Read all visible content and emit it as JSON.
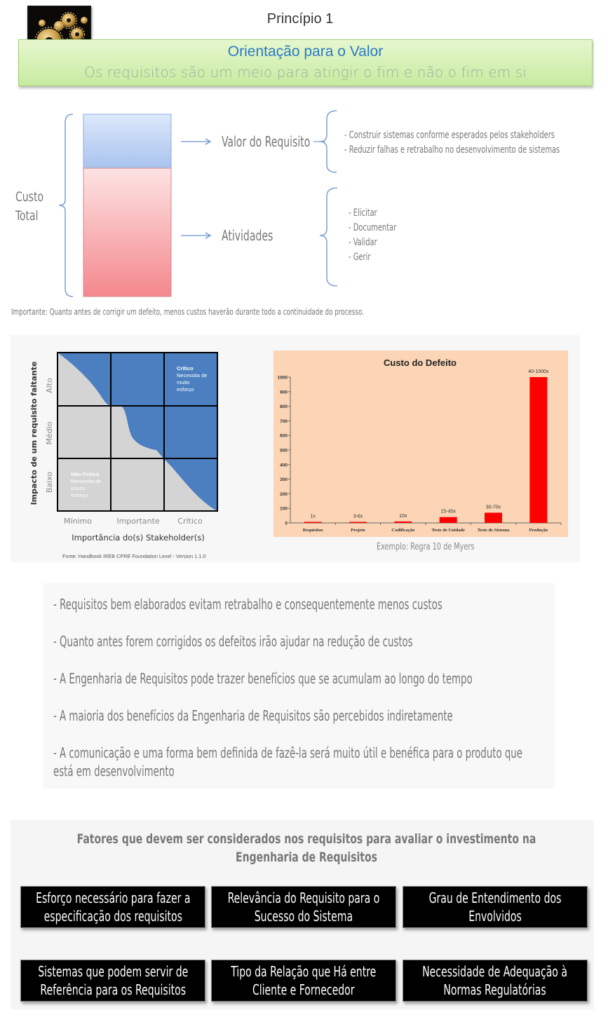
{
  "header": {
    "title": "Princípio 1",
    "banner_title": "Orientação para o Valor",
    "banner_subtitle": "Os requisitos são um meio para atingir o fim e não o fim em si"
  },
  "cost_diagram": {
    "total_label_lines": [
      "Custo",
      "Total"
    ],
    "value_label": "Valor do Requisito",
    "value_bullets": [
      "- Construir sistemas conforme esperados pelos stakeholders",
      "- Reduzir falhas e retrabalho no desenvolvimento de sistemas"
    ],
    "activities_label": "Atividades",
    "activity_bullets": [
      "- Elicitar",
      "- Documentar",
      "- Validar",
      "- Gerir"
    ],
    "note": "Importante: Quanto antes de corrigir um defeito, menos custos haverão durante todo a continuidade do processo."
  },
  "quadrant": {
    "y_title": "Impacto de um requisito faltante",
    "y_levels": [
      "Baixo",
      "Médio",
      "Alto"
    ],
    "x_title": "Importância do(s) Stakeholder(s)",
    "x_levels": [
      "Mínimo",
      "Importante",
      "Crítico"
    ],
    "critical_lines": [
      "Crítico",
      "Necessita de",
      "muito",
      "esforço"
    ],
    "noncritical_lines": [
      "Não-Crítico",
      "Necessita de",
      "pouco",
      "esforço"
    ],
    "source": "Fonte: Handbook IREB CPRE Foundation Level - Version 1.1.0"
  },
  "chart_data": {
    "type": "bar",
    "title": "Custo do Defeito",
    "categories": [
      "Requisitos",
      "Projeto",
      "Codificação",
      "Teste de Unidade",
      "Teste de Sistema",
      "Produção"
    ],
    "values": [
      1,
      6,
      10,
      40,
      70,
      1000
    ],
    "data_labels": [
      "1x",
      "3-6x",
      "10x",
      "15-40x",
      "30-70x",
      "40-1000x"
    ],
    "yticks": [
      0,
      100,
      200,
      300,
      400,
      500,
      600,
      700,
      800,
      900,
      1000
    ],
    "ylim": [
      0,
      1000
    ],
    "bar_color": "#ff0000",
    "background": "#fbd5b5",
    "caption": "Exemplo: Regra 10 de Myers"
  },
  "notes": [
    [
      "- Requisitos bem elaborados evitam retrabalho e consequentemente menos custos"
    ],
    [
      "- Quanto antes forem corrigidos os defeitos irão ajudar na redução de custos"
    ],
    [
      "- A Engenharia de Requisitos pode trazer benefícios que se acumulam ao longo do tempo"
    ],
    [
      "- A maioria dos benefícios da Engenharia de Requisitos são percebidos indiretamente"
    ],
    [
      "- A comunicação e uma forma bem definida de fazê-la será muito útil e benéfica para o produto que",
      "está em desenvolvimento"
    ]
  ],
  "factors": {
    "title_lines": [
      "Fatores que devem ser considerados nos requisitos para avaliar o investimento na",
      "Engenharia de Requisitos"
    ],
    "items": [
      [
        "Esforço necessário para fazer a",
        "especificação dos requisitos"
      ],
      [
        "Relevância do Requisito para o",
        "Sucesso do Sistema"
      ],
      [
        "Grau de Entendimento dos",
        "Envolvidos"
      ],
      [
        "Sistemas que podem servir de",
        "Referência para os Requisitos"
      ],
      [
        "Tipo da Relação que Há entre",
        "Cliente e Fornecedor"
      ],
      [
        "Necessidade de Adequação à",
        "Normas Regulatórias"
      ]
    ]
  },
  "colors": {
    "banner_title": "#2a79c5",
    "bar_blue": "#c9daf8",
    "bar_red": "#f8a3a8",
    "quadrant_blue": "#4a7fc1",
    "bracket": "#7da0d3"
  }
}
